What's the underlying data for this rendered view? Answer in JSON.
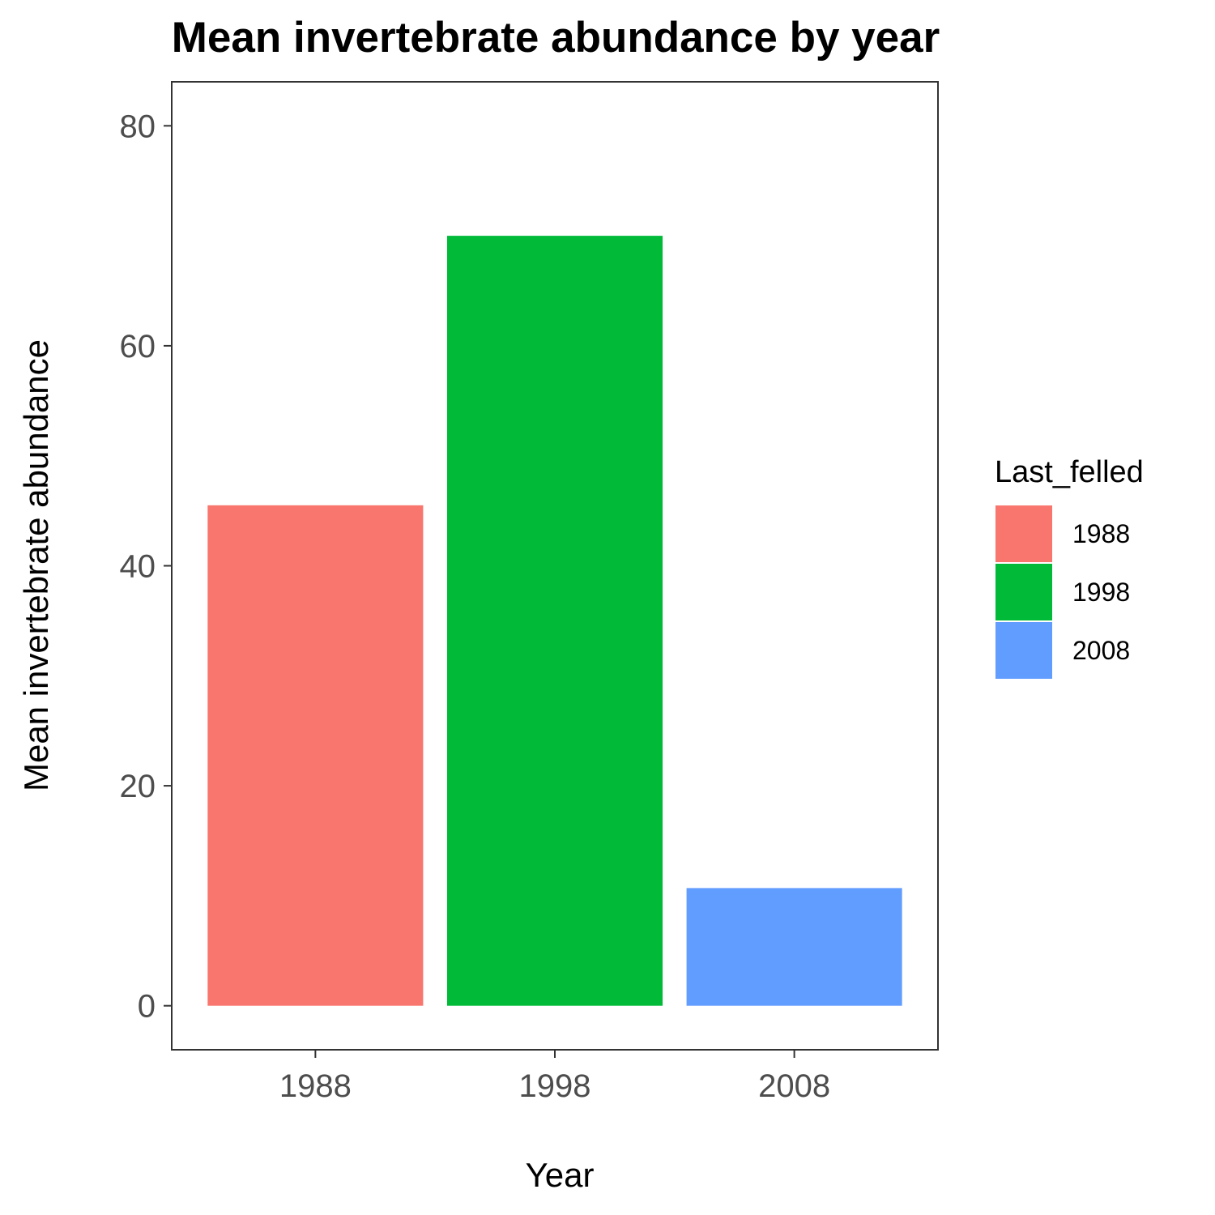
{
  "chart_data": {
    "type": "bar",
    "title": "Mean invertebrate abundance by year",
    "xlabel": "Year",
    "ylabel": "Mean invertebrate abundance",
    "categories": [
      "1988",
      "1998",
      "2008"
    ],
    "values": [
      45.5,
      70.0,
      10.7
    ],
    "colors": [
      "#f8766d",
      "#00ba38",
      "#619cff"
    ],
    "ylim": [
      -4,
      84
    ],
    "yticks": [
      0,
      20,
      40,
      60,
      80
    ],
    "grid": false,
    "legend": {
      "title": "Last_felled",
      "position": "right",
      "entries": [
        "1988",
        "1998",
        "2008"
      ]
    }
  }
}
